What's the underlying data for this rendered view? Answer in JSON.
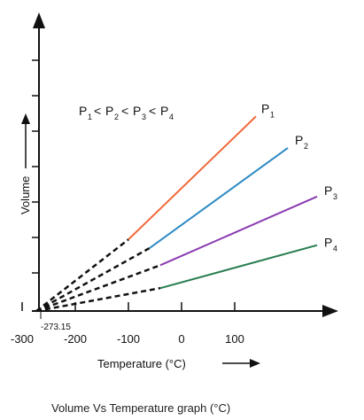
{
  "chart_data": {
    "type": "line",
    "title": "",
    "xlabel": "Temperature (°C)",
    "ylabel": "Volume",
    "xlim": [
      -320,
      280
    ],
    "x_ticks": [
      -300,
      -200,
      -100,
      0,
      100
    ],
    "x_tick_labels": [
      "-300",
      "-200",
      "-100",
      "0",
      "100"
    ],
    "absolute_zero_label": "-273.15",
    "absolute_zero_x": -273.15,
    "relation_text": {
      "base": "P",
      "subs": [
        "1",
        "2",
        "3",
        "4"
      ],
      "op": "<"
    },
    "extrapolation_style": "dashed",
    "series": [
      {
        "name": "P1",
        "label_base": "P",
        "label_sub": "1",
        "color": "#f0693a",
        "solid_x": [
          -100,
          140
        ],
        "rel_y_at_solid_start": 0.25,
        "rel_y_at_solid_end": 0.68
      },
      {
        "name": "P2",
        "label_base": "P",
        "label_sub": "2",
        "color": "#2d8ac4",
        "solid_x": [
          -60,
          200
        ],
        "rel_y_at_solid_start": 0.22,
        "rel_y_at_solid_end": 0.57
      },
      {
        "name": "P3",
        "label_base": "P",
        "label_sub": "3",
        "color": "#8a3bb0",
        "solid_x": [
          -40,
          255
        ],
        "rel_y_at_solid_start": 0.16,
        "rel_y_at_solid_end": 0.4
      },
      {
        "name": "P4",
        "label_base": "P",
        "label_sub": "4",
        "color": "#267d50",
        "solid_x": [
          -40,
          255
        ],
        "rel_y_at_solid_start": 0.08,
        "rel_y_at_solid_end": 0.23
      }
    ]
  },
  "caption": "Volume Vs Temperature graph (°C)"
}
